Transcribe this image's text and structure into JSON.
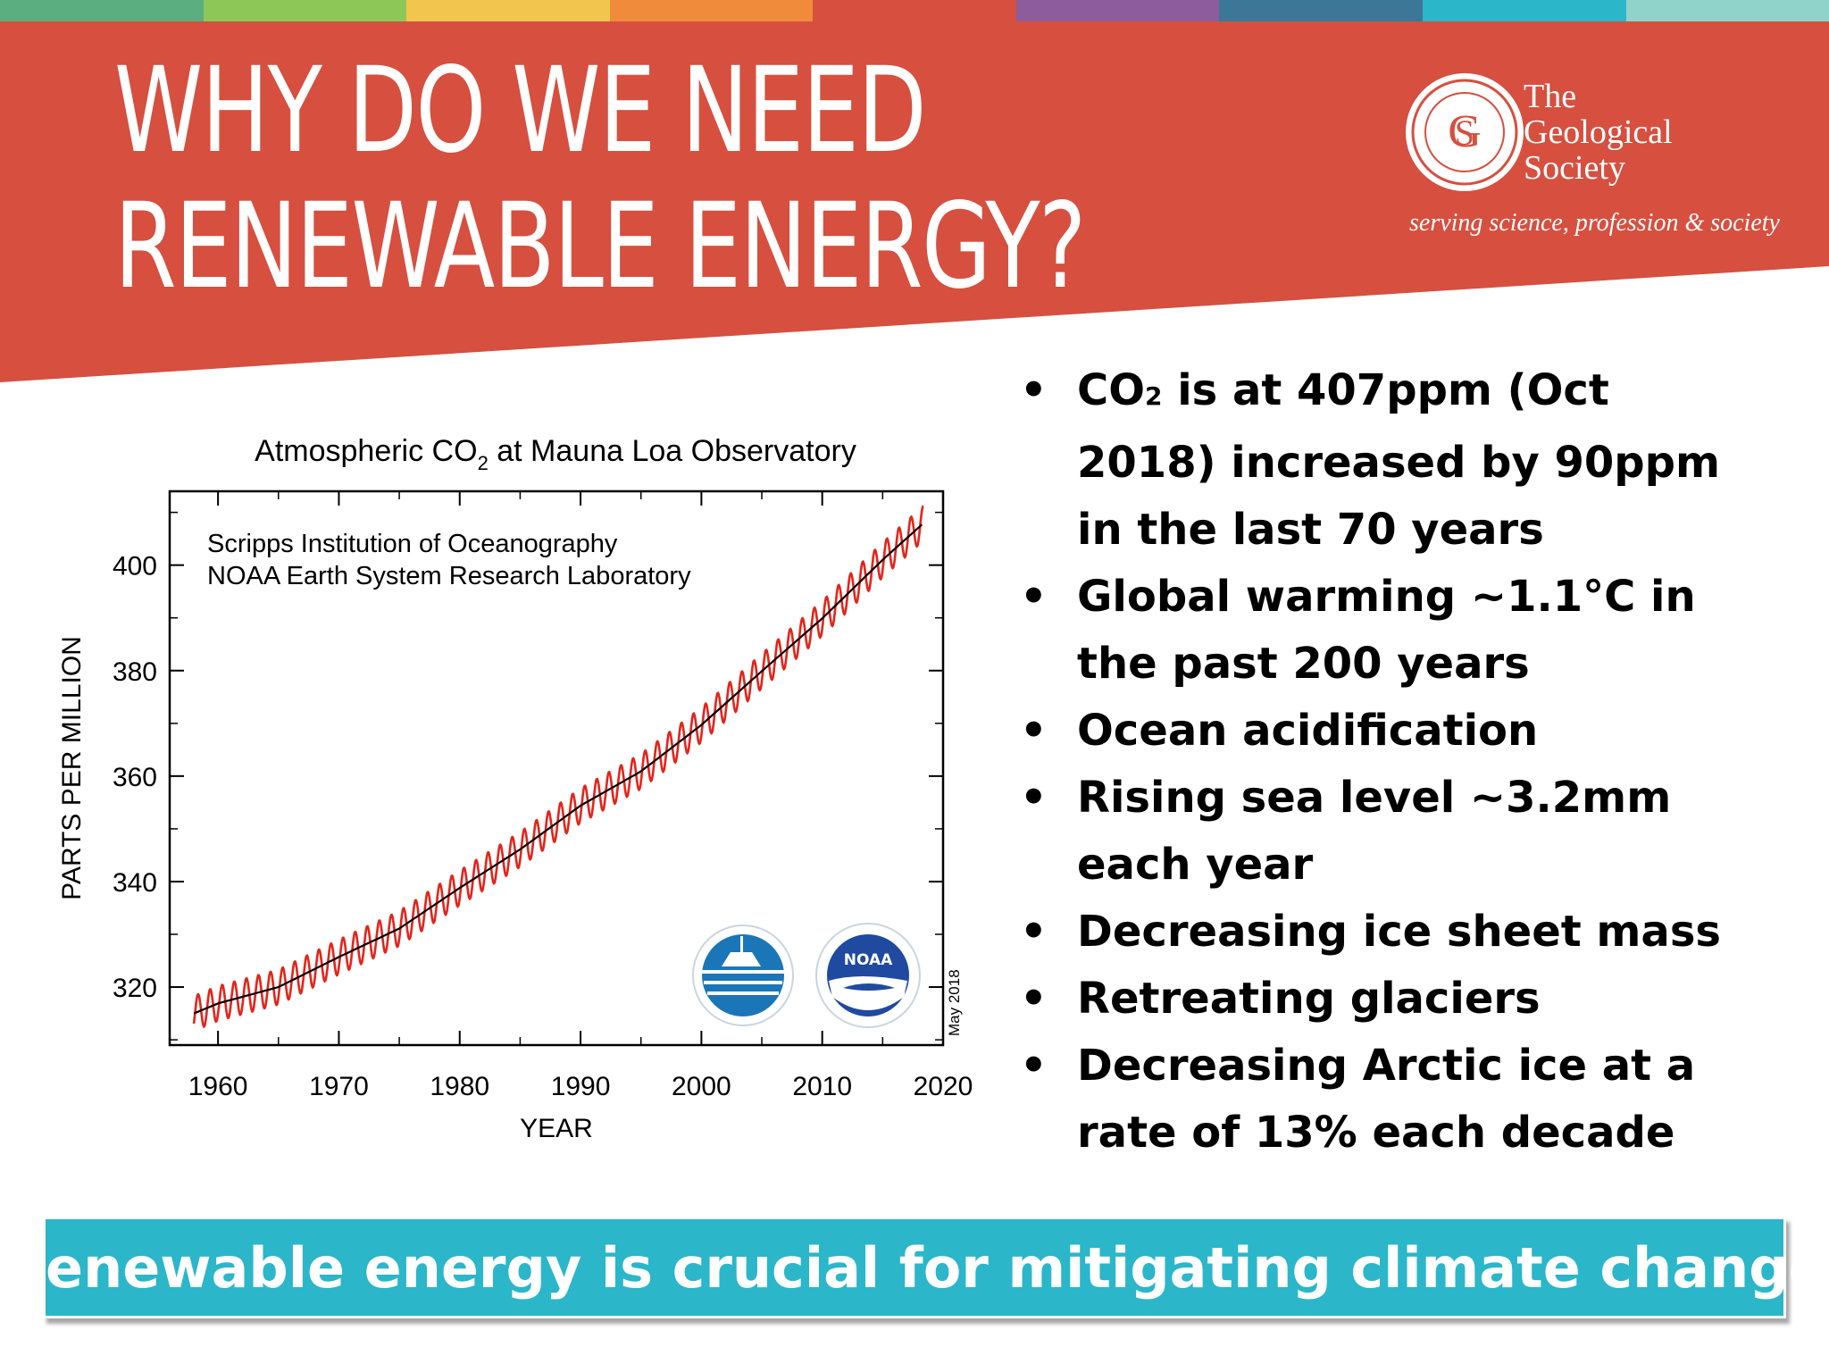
{
  "colors": {
    "banner": "#d64f3f",
    "accent": "#2bb6c9",
    "stripes": [
      "#5bae7f",
      "#8cc757",
      "#f2c54e",
      "#ef8b3a",
      "#d64f3f",
      "#8d5c9c",
      "#3c7797",
      "#2bb6c9",
      "#8fd3ca"
    ],
    "monthly_line": "#e3241b",
    "trend_line": "#000000"
  },
  "title": {
    "line1": "WHY DO WE NEED",
    "line2": "RENEWABLE ENERGY?"
  },
  "logo": {
    "name_line1": "The",
    "name_line2": "Geological",
    "name_line3": "Society",
    "tagline": "serving science, profession & society",
    "seal_icon": "geological-society-seal-icon"
  },
  "chart_data": {
    "type": "line",
    "title": "Atmospheric CO2 at Mauna Loa Observatory",
    "title_main": "Atmospheric CO",
    "title_sub": "2",
    "title_rest": " at Mauna Loa Observatory",
    "inset_line1": "Scripps Institution of Oceanography",
    "inset_line2": "NOAA Earth System Research Laboratory",
    "xlabel": "YEAR",
    "ylabel": "PARTS PER MILLION",
    "stamp": "May 2018",
    "xlim": [
      1956,
      2020
    ],
    "ylim": [
      309,
      414
    ],
    "xticks": [
      1960,
      1970,
      1980,
      1990,
      2000,
      2010,
      2020
    ],
    "yticks": [
      320,
      340,
      360,
      380,
      400
    ],
    "grid": false,
    "icons": [
      "scripps-logo-icon",
      "noaa-logo-icon"
    ],
    "noaa_text": "NOAA",
    "series": [
      {
        "style": "monthly-seasonal",
        "seasonal_amplitude_ppm": 3.3,
        "x": [
          1958,
          1960,
          1965,
          1970,
          1975,
          1980,
          1985,
          1990,
          1995,
          2000,
          2005,
          2010,
          2015,
          2018.4
        ],
        "y": [
          315.0,
          316.9,
          320.0,
          325.7,
          331.1,
          338.8,
          346.1,
          354.4,
          360.9,
          369.7,
          379.9,
          389.9,
          401.0,
          408.0
        ]
      },
      {
        "style": "trend",
        "x": [
          1958,
          1960,
          1965,
          1970,
          1975,
          1980,
          1985,
          1990,
          1995,
          2000,
          2005,
          2010,
          2015,
          2018.4
        ],
        "y": [
          315.0,
          316.9,
          320.0,
          325.7,
          331.1,
          338.8,
          346.1,
          354.4,
          360.9,
          369.7,
          379.9,
          389.9,
          401.0,
          408.0
        ]
      }
    ]
  },
  "bullets": [
    {
      "parts": [
        {
          "t": "CO"
        },
        {
          "t": "2",
          "sub": true
        },
        {
          "t": " is at 407ppm (Oct"
        },
        {
          "br": true
        },
        {
          "t": "2018) increased by 90ppm"
        },
        {
          "br": true
        },
        {
          "t": "in the last 70 years"
        }
      ]
    },
    {
      "parts": [
        {
          "t": "Global warming ~1.1°C in"
        },
        {
          "br": true
        },
        {
          "t": "the past 200 years"
        }
      ]
    },
    {
      "parts": [
        {
          "t": "Ocean acidification"
        }
      ]
    },
    {
      "parts": [
        {
          "t": "Rising sea level ~3.2mm"
        },
        {
          "br": true
        },
        {
          "t": "each year"
        }
      ]
    },
    {
      "parts": [
        {
          "t": "Decreasing ice sheet mass"
        }
      ]
    },
    {
      "parts": [
        {
          "t": "Retreating glaciers"
        }
      ]
    },
    {
      "parts": [
        {
          "t": "Decreasing Arctic ice at a"
        },
        {
          "br": true
        },
        {
          "t": "rate of 13% each decade"
        }
      ]
    }
  ],
  "conclusion": "Renewable energy is crucial for mitigating climate change"
}
